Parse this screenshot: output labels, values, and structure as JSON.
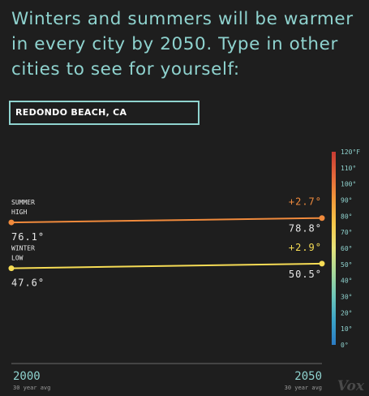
{
  "headline": "Winters and summers will be warmer in every city by 2050. Type in other cities to see for yourself:",
  "search": {
    "value": "REDONDO BEACH, CA"
  },
  "branding": "Vox",
  "colors": {
    "background": "#1e1e1e",
    "headline": "#8fd3cf",
    "summer": "#f08a3c",
    "winter": "#f6dc55",
    "axis": "#777777"
  },
  "chart_data": {
    "type": "line",
    "x": [
      2000,
      2050
    ],
    "x_tick_labels": [
      "2000",
      "2050"
    ],
    "x_tick_sublabels": [
      "30 year avg",
      "30 year avg"
    ],
    "series": [
      {
        "name": "SUMMER HIGH",
        "name_lines": [
          "SUMMER",
          "HIGH"
        ],
        "values": [
          76.1,
          78.8
        ],
        "value_labels": [
          "76.1°",
          "78.8°"
        ],
        "change_label": "+2.7°",
        "color": "#f08a3c"
      },
      {
        "name": "WINTER LOW",
        "name_lines": [
          "WINTER",
          "LOW"
        ],
        "values": [
          47.6,
          50.5
        ],
        "value_labels": [
          "47.6°",
          "50.5°"
        ],
        "change_label": "+2.9°",
        "color": "#f6dc55"
      }
    ],
    "color_scale": {
      "min": 0,
      "max": 120,
      "ticks": [
        0,
        10,
        20,
        30,
        40,
        50,
        60,
        70,
        80,
        90,
        100,
        110,
        120
      ],
      "tick_labels": [
        "0°",
        "10°",
        "20°",
        "30°",
        "40°",
        "50°",
        "60°",
        "70°",
        "80°",
        "90°",
        "100°",
        "110°",
        "120°F"
      ],
      "gradient": [
        "#2b7bc4",
        "#3aa3c8",
        "#6cc6b9",
        "#a7d99a",
        "#e6e37a",
        "#f6c84a",
        "#f29a3a",
        "#e4673a",
        "#c73a32"
      ]
    },
    "ylim": [
      0,
      120
    ]
  }
}
